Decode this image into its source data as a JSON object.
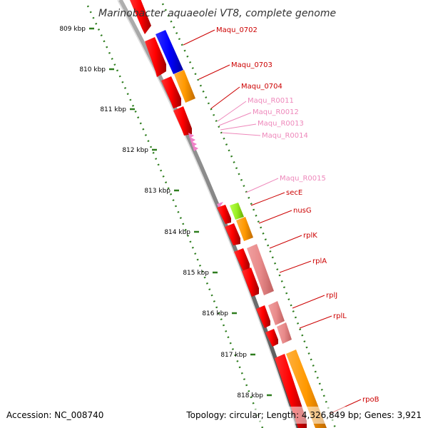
{
  "title": "Marinobacter aquaeolei VT8, complete genome",
  "footer": {
    "accession": "Accession: NC_008740",
    "summary": "Topology: circular; Length: 4,326,849 bp; Genes: 3,921"
  },
  "kbp_ticks": [
    "809 kbp",
    "810 kbp",
    "811 kbp",
    "812 kbp",
    "813 kbp",
    "814 kbp",
    "815 kbp",
    "816 kbp",
    "817 kbp",
    "818 kbp"
  ],
  "gene_labels": [
    {
      "text": "Maqu_0702",
      "color": "#cc0000"
    },
    {
      "text": "Maqu_0703",
      "color": "#cc0000"
    },
    {
      "text": "Maqu_0704",
      "color": "#cc0000"
    },
    {
      "text": "Maqu_R0011",
      "color": "#ee88bb"
    },
    {
      "text": "Maqu_R0012",
      "color": "#ee88bb"
    },
    {
      "text": "Maqu_R0013",
      "color": "#ee88bb"
    },
    {
      "text": "Maqu_R0014",
      "color": "#ee88bb"
    },
    {
      "text": "Maqu_R0015",
      "color": "#ee88bb"
    },
    {
      "text": "secE",
      "color": "#cc0000"
    },
    {
      "text": "nusG",
      "color": "#cc0000"
    },
    {
      "text": "rplK",
      "color": "#cc0000"
    },
    {
      "text": "rplA",
      "color": "#cc0000"
    },
    {
      "text": "rplJ",
      "color": "#cc0000"
    },
    {
      "text": "rplL",
      "color": "#cc0000"
    },
    {
      "text": "rpoB",
      "color": "#cc0000"
    }
  ],
  "colors": {
    "backbone": "#8a8a8a",
    "cds_strand": "#ff0000",
    "kbp_dots": "#2e7d1e",
    "blue_feature": "#0000ff",
    "orange_feature": "#ff9900",
    "pink_feature": "#e88a8a",
    "green_feature": "#99ee22",
    "rna_feature": "#f080c8"
  }
}
